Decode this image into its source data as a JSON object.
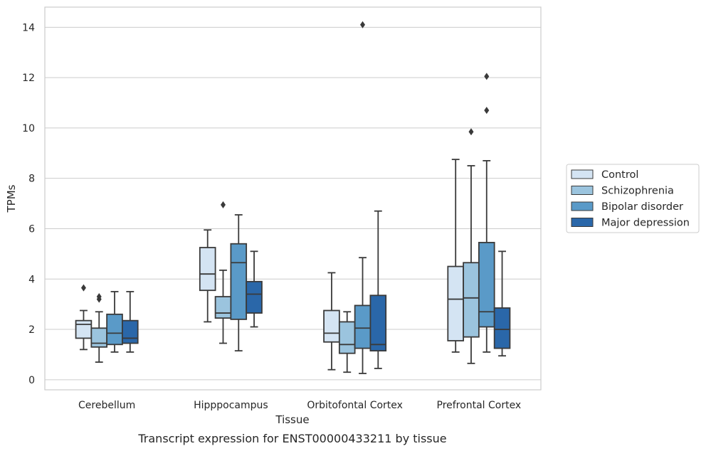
{
  "chart_data": {
    "type": "box",
    "caption": "Transcript expression for ENST00000433211 by tissue",
    "xlabel": "Tissue",
    "ylabel": "TPMs",
    "ylim": [
      -0.4,
      14.8
    ],
    "yticks": [
      0,
      2,
      4,
      6,
      8,
      10,
      12,
      14
    ],
    "grid": true,
    "legend_position": "right",
    "categories": [
      "Cerebellum",
      "Hipppocampus",
      "Orbitofontal Cortex",
      "Prefrontal Cortex"
    ],
    "series": [
      {
        "name": "Control",
        "color": "#d4e4f3",
        "boxes": [
          {
            "whisker_low": 1.2,
            "q1": 1.65,
            "median": 2.2,
            "q3": 2.35,
            "whisker_high": 2.75,
            "outliers": [
              3.65
            ]
          },
          {
            "whisker_low": 2.3,
            "q1": 3.55,
            "median": 4.2,
            "q3": 5.25,
            "whisker_high": 5.95,
            "outliers": []
          },
          {
            "whisker_low": 0.4,
            "q1": 1.5,
            "median": 1.85,
            "q3": 2.75,
            "whisker_high": 4.25,
            "outliers": []
          },
          {
            "whisker_low": 1.1,
            "q1": 1.55,
            "median": 3.2,
            "q3": 4.5,
            "whisker_high": 8.75,
            "outliers": []
          }
        ]
      },
      {
        "name": "Schizophrenia",
        "color": "#9bc4de",
        "boxes": [
          {
            "whisker_low": 0.7,
            "q1": 1.3,
            "median": 1.45,
            "q3": 2.05,
            "whisker_high": 2.7,
            "outliers": [
              3.2,
              3.3
            ]
          },
          {
            "whisker_low": 1.45,
            "q1": 2.45,
            "median": 2.65,
            "q3": 3.3,
            "whisker_high": 4.35,
            "outliers": [
              6.95
            ]
          },
          {
            "whisker_low": 0.3,
            "q1": 1.05,
            "median": 1.4,
            "q3": 2.3,
            "whisker_high": 2.7,
            "outliers": []
          },
          {
            "whisker_low": 0.65,
            "q1": 1.7,
            "median": 3.25,
            "q3": 4.65,
            "whisker_high": 8.5,
            "outliers": [
              9.85
            ]
          }
        ]
      },
      {
        "name": "Bipolar disorder",
        "color": "#5a9ac8",
        "boxes": [
          {
            "whisker_low": 1.1,
            "q1": 1.4,
            "median": 1.85,
            "q3": 2.6,
            "whisker_high": 3.5,
            "outliers": []
          },
          {
            "whisker_low": 1.15,
            "q1": 2.4,
            "median": 4.65,
            "q3": 5.4,
            "whisker_high": 6.55,
            "outliers": []
          },
          {
            "whisker_low": 0.25,
            "q1": 1.25,
            "median": 2.05,
            "q3": 2.95,
            "whisker_high": 4.85,
            "outliers": [
              14.1
            ]
          },
          {
            "whisker_low": 1.1,
            "q1": 2.1,
            "median": 2.7,
            "q3": 5.45,
            "whisker_high": 8.7,
            "outliers": [
              10.7,
              12.05
            ]
          }
        ]
      },
      {
        "name": "Major depression",
        "color": "#2a67a9",
        "boxes": [
          {
            "whisker_low": 1.1,
            "q1": 1.45,
            "median": 1.65,
            "q3": 2.35,
            "whisker_high": 3.5,
            "outliers": []
          },
          {
            "whisker_low": 2.1,
            "q1": 2.65,
            "median": 3.4,
            "q3": 3.9,
            "whisker_high": 5.1,
            "outliers": []
          },
          {
            "whisker_low": 0.45,
            "q1": 1.15,
            "median": 1.4,
            "q3": 3.35,
            "whisker_high": 6.7,
            "outliers": []
          },
          {
            "whisker_low": 0.95,
            "q1": 1.25,
            "median": 2.0,
            "q3": 2.85,
            "whisker_high": 5.1,
            "outliers": []
          }
        ]
      }
    ]
  }
}
